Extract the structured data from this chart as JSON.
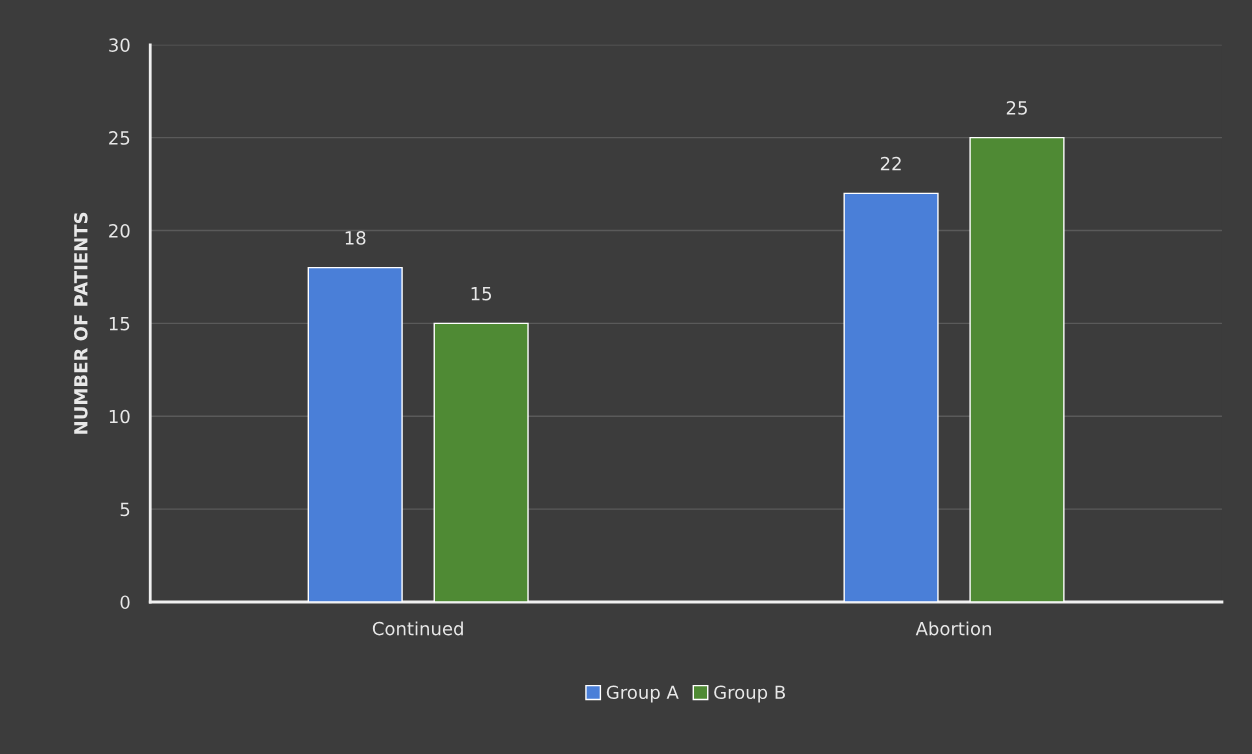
{
  "chart_data": {
    "type": "bar",
    "ylabel": "NUMBER OF PATIENTS",
    "categories": [
      "Continued",
      "Abortion"
    ],
    "series": [
      {
        "name": "Group A",
        "color": "#4a7fd8",
        "values": [
          18,
          22
        ]
      },
      {
        "name": "Group B",
        "color": "#4f8a34",
        "values": [
          15,
          25
        ]
      }
    ],
    "ylim": [
      0,
      30
    ],
    "yticks": [
      0,
      5,
      10,
      15,
      20,
      25,
      30
    ],
    "grid": "y",
    "legend": "bottom",
    "data_labels": true
  }
}
